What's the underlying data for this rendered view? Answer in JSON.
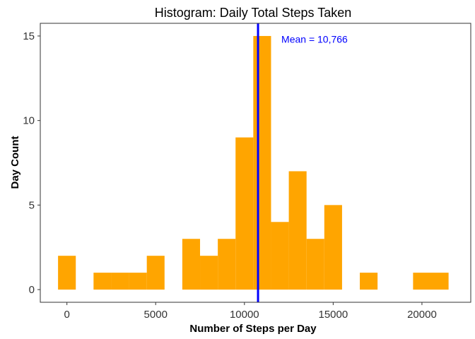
{
  "chart_data": {
    "type": "bar",
    "title": "Histogram: Daily Total Steps Taken",
    "xlabel": "Number of Steps per Day",
    "ylabel": "Day Count",
    "bin_width": 1000,
    "bins": [
      {
        "x": 0,
        "count": 2
      },
      {
        "x": 1000,
        "count": 0
      },
      {
        "x": 2000,
        "count": 1
      },
      {
        "x": 3000,
        "count": 1
      },
      {
        "x": 4000,
        "count": 1
      },
      {
        "x": 5000,
        "count": 2
      },
      {
        "x": 6000,
        "count": 0
      },
      {
        "x": 7000,
        "count": 3
      },
      {
        "x": 8000,
        "count": 2
      },
      {
        "x": 9000,
        "count": 3
      },
      {
        "x": 10000,
        "count": 9
      },
      {
        "x": 11000,
        "count": 15
      },
      {
        "x": 12000,
        "count": 4
      },
      {
        "x": 13000,
        "count": 7
      },
      {
        "x": 14000,
        "count": 3
      },
      {
        "x": 15000,
        "count": 5
      },
      {
        "x": 16000,
        "count": 0
      },
      {
        "x": 17000,
        "count": 1
      },
      {
        "x": 18000,
        "count": 0
      },
      {
        "x": 19000,
        "count": 0
      },
      {
        "x": 20000,
        "count": 1
      },
      {
        "x": 21000,
        "count": 1
      }
    ],
    "xlim": [
      -1500,
      22750
    ],
    "ylim": [
      -0.75,
      15.75
    ],
    "x_ticks": [
      0,
      5000,
      10000,
      15000,
      20000
    ],
    "x_tick_labels": [
      "0",
      "5000",
      "10000",
      "15000",
      "20000"
    ],
    "y_ticks": [
      0,
      5,
      10,
      15
    ],
    "y_tick_labels": [
      "0",
      "5",
      "10",
      "15"
    ],
    "mean": 10766,
    "mean_label": "Mean = 10,766",
    "grid": false,
    "legend": "none",
    "colors": {
      "bar": "#FFA500",
      "mean_line": "#0000FF",
      "annotation": "#0000FF",
      "panel_border": "#333333"
    }
  }
}
